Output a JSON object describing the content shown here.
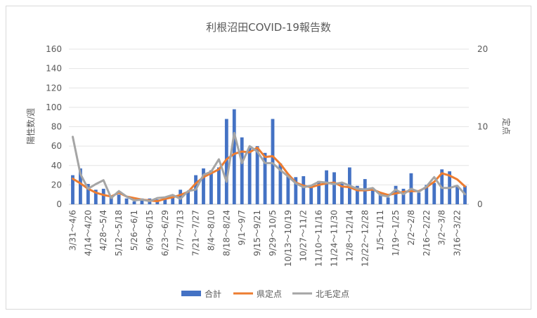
{
  "chart_data": {
    "type": "bar",
    "title": "利根沼田COVID-19報告数",
    "ylabel": "陽性数/週",
    "y2label": "定点",
    "ylim": [
      0,
      160
    ],
    "y_ticks": [
      0,
      20,
      40,
      60,
      80,
      100,
      120,
      140,
      160
    ],
    "y2lim": [
      0,
      20
    ],
    "y2_ticks": [
      0,
      10,
      20
    ],
    "grid": true,
    "legend_position": "bottom",
    "tick_labels": [
      "3/31～4/6",
      "4/14～4/20",
      "4/28～5/4",
      "5/12～5/18",
      "5/26～6/1",
      "6/9～6/15",
      "6/23～6/29",
      "7/7～7/13",
      "7/21～7/27",
      "8/4～8/10",
      "8/18～8/24",
      "9/1～9/7",
      "9/15～9/21",
      "9/29～10/5",
      "10/13～10/19",
      "10/27～11/2",
      "11/10～11/16",
      "11/24～11/30",
      "12/8～12/14",
      "12/22～12/28",
      "1/5～1/11",
      "1/19～1/25",
      "2/2～2/8",
      "2/16～2/22",
      "3/2～3/8",
      "3/16～3/22"
    ],
    "n_weeks": 52,
    "series": [
      {
        "name": "合計",
        "type": "bar",
        "axis": "left",
        "color": "#4472C4",
        "values": [
          30,
          37,
          21,
          15,
          16,
          8,
          10,
          6,
          3,
          6,
          6,
          5,
          7,
          8,
          15,
          13,
          30,
          37,
          35,
          38,
          88,
          98,
          69,
          58,
          60,
          53,
          88,
          42,
          30,
          28,
          29,
          17,
          24,
          35,
          33,
          22,
          38,
          19,
          26,
          17,
          12,
          7,
          19,
          16,
          32,
          12,
          20,
          22,
          36,
          34,
          19,
          19
        ]
      },
      {
        "name": "県定点",
        "type": "line",
        "axis": "right",
        "color": "#ED7D31",
        "values": [
          3.3,
          2.7,
          2.0,
          1.5,
          1.2,
          1.0,
          1.5,
          1.0,
          0.8,
          0.6,
          0.5,
          0.4,
          0.7,
          0.9,
          1.2,
          1.6,
          2.7,
          3.5,
          4.0,
          4.5,
          5.8,
          6.5,
          6.8,
          6.7,
          7.3,
          6.1,
          6.2,
          5.2,
          3.9,
          2.8,
          2.4,
          2.2,
          2.5,
          2.7,
          2.8,
          2.3,
          2.2,
          1.8,
          1.8,
          1.9,
          1.5,
          1.2,
          1.4,
          1.6,
          1.7,
          1.7,
          2.2,
          2.9,
          4.0,
          3.7,
          3.2,
          2.3
        ]
      },
      {
        "name": "北毛定点",
        "type": "line",
        "axis": "right",
        "color": "#A5A5A5",
        "values": [
          8.7,
          3.9,
          2.0,
          2.6,
          3.1,
          0.8,
          1.7,
          1.0,
          0.5,
          0.6,
          0.4,
          0.8,
          0.9,
          1.2,
          0.7,
          1.7,
          1.9,
          3.8,
          4.2,
          5.8,
          2.9,
          9.2,
          5.3,
          7.5,
          6.8,
          5.3,
          5.3,
          4.4,
          3.6,
          2.7,
          2.2,
          2.4,
          2.9,
          2.8,
          2.6,
          2.8,
          2.4,
          2.0,
          1.9,
          2.1,
          1.2,
          1.0,
          1.9,
          1.3,
          2.0,
          1.6,
          2.3,
          3.5,
          2.1,
          2.1,
          2.4,
          1.3
        ]
      }
    ]
  }
}
